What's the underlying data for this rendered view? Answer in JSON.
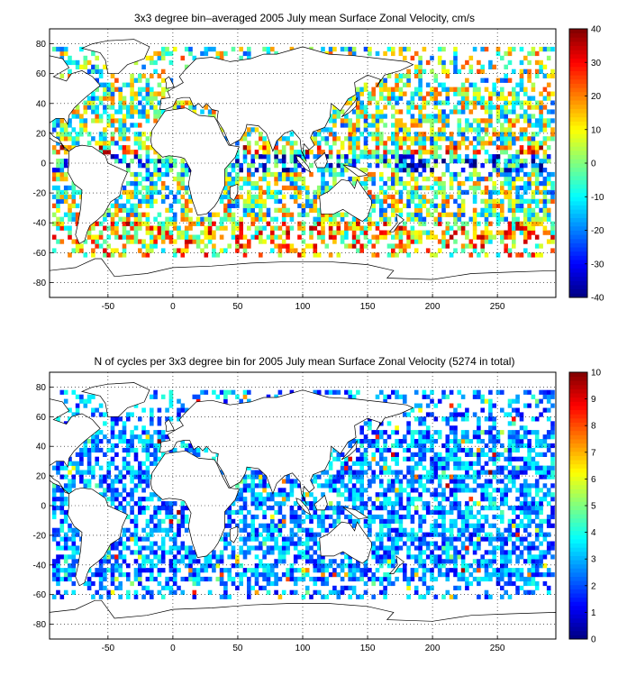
{
  "chart_data": [
    {
      "type": "heatmap",
      "title": "3x3 degree bin–averaged 2005 July mean Surface Zonal Velocity, cm/s",
      "xlim": [
        -95,
        295
      ],
      "ylim": [
        -90,
        90
      ],
      "x_ticks": [
        -50,
        0,
        50,
        100,
        150,
        200,
        250
      ],
      "y_ticks": [
        80,
        60,
        40,
        20,
        0,
        -20,
        -40,
        -60,
        -80
      ],
      "grid": true,
      "bin_size_deg": 3,
      "colorbar": {
        "range": [
          -40,
          40
        ],
        "ticks": [
          40,
          30,
          20,
          10,
          0,
          -10,
          -20,
          -30,
          -40
        ],
        "colormap": "jet"
      }
    },
    {
      "type": "heatmap",
      "title": "N of cycles per 3x3 degree bin for 2005 July mean Surface Zonal Velocity (5274 in total)",
      "xlim": [
        -95,
        295
      ],
      "ylim": [
        -90,
        90
      ],
      "x_ticks": [
        -50,
        0,
        50,
        100,
        150,
        200,
        250
      ],
      "y_ticks": [
        80,
        60,
        40,
        20,
        0,
        -20,
        -40,
        -60,
        -80
      ],
      "grid": true,
      "bin_size_deg": 3,
      "colorbar": {
        "range": [
          0,
          10
        ],
        "ticks": [
          10,
          9,
          8,
          7,
          6,
          5,
          4,
          3,
          2,
          1,
          0
        ],
        "colormap": "jet"
      }
    }
  ],
  "colors": {
    "axes": "#000000",
    "grid": "#000000",
    "background": "#ffffff"
  }
}
